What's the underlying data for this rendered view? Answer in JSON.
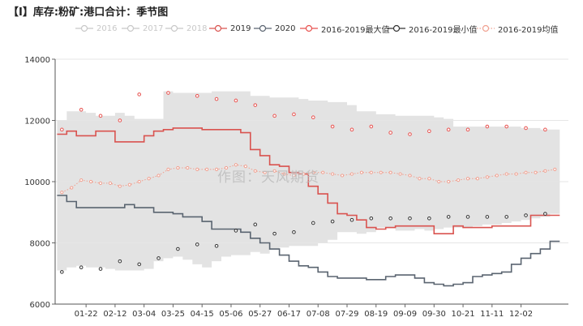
{
  "title": "【I】库存:粉矿:港口合计：季节图",
  "watermark": "作图：天风期货",
  "legend_inactive_color": "#c8c8c8",
  "chart_data": {
    "type": "line",
    "title": "【I】库存:粉矿:港口合计：季节图",
    "xlabel": "",
    "ylabel": "",
    "ylim": [
      6000,
      14000
    ],
    "yticks": [
      6000,
      8000,
      10000,
      12000,
      14000
    ],
    "xticks": [
      "01-22",
      "02-12",
      "03-04",
      "03-25",
      "04-15",
      "05-06",
      "05-27",
      "06-17",
      "07-08",
      "07-29",
      "08-19",
      "09-09",
      "09-30",
      "10-21",
      "11-11",
      "12-02"
    ],
    "grid": true,
    "legend_position": "top",
    "week_count": 52,
    "x_domain_weeks": [
      -0.2,
      52.9
    ],
    "range_band": {
      "name": "min-max range",
      "color": "#e3e3e3",
      "upper": [
        12000,
        12300,
        12300,
        12250,
        12150,
        12150,
        12250,
        12150,
        12050,
        12050,
        12050,
        12950,
        12900,
        12900,
        12900,
        12900,
        12950,
        12950,
        12950,
        12950,
        12800,
        12800,
        12750,
        12750,
        12750,
        12700,
        12650,
        12650,
        12600,
        12600,
        12500,
        12300,
        12300,
        12200,
        12200,
        12150,
        12150,
        12150,
        12150,
        12100,
        12050,
        11800,
        11800,
        11800,
        11800,
        11800,
        11800,
        11800,
        11750,
        11750,
        11700,
        11700
      ],
      "lower": [
        7100,
        7200,
        7250,
        7200,
        7200,
        7150,
        7100,
        7100,
        7100,
        7150,
        7400,
        7500,
        7550,
        7450,
        7300,
        7200,
        7400,
        7550,
        7600,
        7600,
        7700,
        7650,
        7800,
        7850,
        7900,
        7900,
        7900,
        8000,
        8100,
        8350,
        8350,
        8300,
        8350,
        8500,
        8500,
        8400,
        8400,
        8450,
        8400,
        8450,
        8500,
        8500,
        8500,
        8550,
        8600,
        8600,
        8650,
        8700,
        8750,
        8800,
        8850,
        8950
      ]
    },
    "series": [
      {
        "name": "2016",
        "color": "#c8c8c8",
        "active": false,
        "marker": "circle",
        "line": true,
        "values": []
      },
      {
        "name": "2017",
        "color": "#c8c8c8",
        "active": false,
        "marker": "circle",
        "line": true,
        "values": []
      },
      {
        "name": "2018",
        "color": "#c8c8c8",
        "active": false,
        "marker": "circle",
        "line": true,
        "values": []
      },
      {
        "name": "2019",
        "color": "#d9534f",
        "active": true,
        "marker": "none",
        "line": true,
        "step": true,
        "values": [
          11550,
          11650,
          11500,
          11500,
          11650,
          11650,
          11300,
          11300,
          11300,
          11500,
          11650,
          11700,
          11750,
          11750,
          11750,
          11700,
          11700,
          11700,
          11700,
          11600,
          11050,
          10850,
          10550,
          10500,
          10300,
          10250,
          9850,
          9600,
          9300,
          8950,
          8900,
          8750,
          8500,
          8450,
          8500,
          8550,
          8550,
          8550,
          8550,
          8300,
          8300,
          8550,
          8500,
          8500,
          8500,
          8550,
          8550,
          8550,
          8550,
          8900,
          8900,
          8900
        ]
      },
      {
        "name": "2020",
        "color": "#5a6470",
        "active": true,
        "marker": "none",
        "line": true,
        "step": true,
        "values": [
          9550,
          9350,
          9150,
          9150,
          9150,
          9150,
          9150,
          9250,
          9150,
          9150,
          9000,
          9000,
          8950,
          8850,
          8850,
          8700,
          8450,
          8450,
          8450,
          8350,
          8150,
          8000,
          7800,
          7600,
          7400,
          7250,
          7200,
          7050,
          6900,
          6850,
          6850,
          6850,
          6800,
          6800,
          6900,
          6950,
          6950,
          6850,
          6700,
          6650,
          6600,
          6650,
          6700,
          6900,
          6950,
          7000,
          7050,
          7300,
          7500,
          7650,
          7800,
          8050
        ]
      },
      {
        "name": "2016-2019最大值",
        "color": "#e8524f",
        "active": true,
        "marker": "circle",
        "line": false,
        "values": [
          11700,
          null,
          12350,
          null,
          12150,
          null,
          12000,
          null,
          12850,
          null,
          null,
          12900,
          null,
          null,
          12800,
          null,
          12700,
          null,
          12650,
          null,
          12500,
          null,
          12150,
          null,
          12200,
          null,
          12100,
          null,
          11800,
          null,
          11700,
          null,
          11800,
          null,
          11600,
          null,
          11550,
          null,
          11650,
          null,
          11700,
          null,
          11700,
          null,
          11800,
          null,
          11800,
          null,
          11750,
          null,
          11700,
          null
        ]
      },
      {
        "name": "2016-2019最小值",
        "color": "#333333",
        "active": true,
        "marker": "circle",
        "line": false,
        "values": [
          7050,
          null,
          7200,
          null,
          7150,
          null,
          7400,
          null,
          7300,
          null,
          7500,
          null,
          7800,
          null,
          7950,
          null,
          7900,
          null,
          8400,
          null,
          8600,
          null,
          8300,
          null,
          8350,
          null,
          8650,
          null,
          8700,
          null,
          8750,
          null,
          8800,
          null,
          8800,
          null,
          8800,
          null,
          8800,
          null,
          8850,
          null,
          8850,
          null,
          8850,
          null,
          8850,
          null,
          8900,
          null,
          8950,
          null
        ]
      },
      {
        "name": "2016-2019均值",
        "color": "#f0a090",
        "active": true,
        "marker": "circle",
        "line": true,
        "dotted": true,
        "values": [
          9650,
          9800,
          10050,
          10000,
          9950,
          9950,
          9850,
          9900,
          10000,
          10100,
          10200,
          10400,
          10450,
          10450,
          10400,
          10400,
          10400,
          10450,
          10550,
          10500,
          10350,
          10300,
          10350,
          10250,
          10200,
          10250,
          10300,
          10300,
          10250,
          10200,
          10250,
          10300,
          10300,
          10300,
          10300,
          10250,
          10200,
          10100,
          10100,
          10000,
          10000,
          10050,
          10100,
          10100,
          10150,
          10200,
          10250,
          10250,
          10300,
          10300,
          10350,
          10400
        ]
      }
    ]
  }
}
